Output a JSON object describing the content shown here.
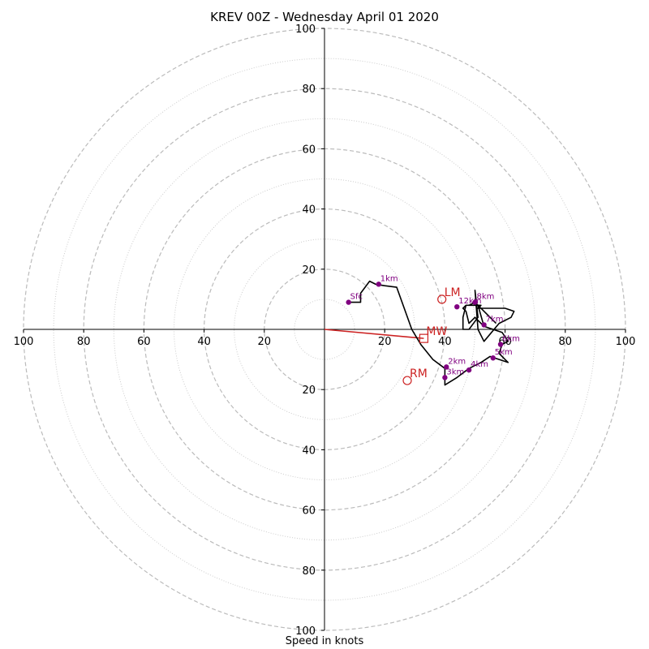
{
  "chart_data": {
    "type": "scatter",
    "subtype": "hodograph",
    "title": "KREV 00Z - Wednesday April 01 2020",
    "xlabel": "Speed in knots",
    "xlim": [
      -100,
      100
    ],
    "ylim": [
      -100,
      100
    ],
    "x_ticks": [
      {
        "value": -100,
        "label": "100"
      },
      {
        "value": -80,
        "label": "80"
      },
      {
        "value": -60,
        "label": "60"
      },
      {
        "value": -40,
        "label": "40"
      },
      {
        "value": -20,
        "label": "20"
      },
      {
        "value": 20,
        "label": "20"
      },
      {
        "value": 40,
        "label": "40"
      },
      {
        "value": 60,
        "label": "60"
      },
      {
        "value": 80,
        "label": "80"
      },
      {
        "value": 100,
        "label": "100"
      }
    ],
    "y_ticks": [
      {
        "value": 100,
        "label": "100"
      },
      {
        "value": 80,
        "label": "80"
      },
      {
        "value": 60,
        "label": "60"
      },
      {
        "value": 40,
        "label": "40"
      },
      {
        "value": 20,
        "label": "20"
      },
      {
        "value": -20,
        "label": "20"
      },
      {
        "value": -40,
        "label": "40"
      },
      {
        "value": -60,
        "label": "60"
      },
      {
        "value": -80,
        "label": "80"
      },
      {
        "value": -100,
        "label": "100"
      }
    ],
    "rings_major": [
      20,
      40,
      60,
      80,
      100
    ],
    "rings_minor": [
      10,
      30,
      50,
      70,
      90
    ],
    "grid": true,
    "colors": {
      "trace": "#000000",
      "height_marker": "#800080",
      "storm_motion": "#cc2222",
      "ring": "#bbbbbb",
      "minor_ring": "#cccccc",
      "axis": "#000000"
    },
    "trace": [
      [
        8,
        9
      ],
      [
        12,
        9
      ],
      [
        12,
        12
      ],
      [
        15,
        16
      ],
      [
        17,
        15
      ],
      [
        20,
        14.5
      ],
      [
        24,
        14
      ],
      [
        29,
        0
      ],
      [
        32,
        -5
      ],
      [
        36,
        -10
      ],
      [
        40,
        -13
      ],
      [
        40,
        -16
      ],
      [
        40,
        -18.5
      ],
      [
        44,
        -16
      ],
      [
        48,
        -13
      ],
      [
        52,
        -11
      ],
      [
        55,
        -9
      ],
      [
        61,
        -11
      ],
      [
        58,
        -8
      ],
      [
        59,
        -5
      ],
      [
        61,
        -4
      ],
      [
        59,
        -1
      ],
      [
        53,
        1
      ],
      [
        51,
        8
      ],
      [
        53,
        1
      ],
      [
        50,
        4
      ],
      [
        48,
        2
      ],
      [
        47,
        6
      ],
      [
        46,
        7
      ],
      [
        47,
        8
      ],
      [
        52,
        8
      ],
      [
        51,
        7
      ],
      [
        60,
        7
      ],
      [
        63,
        6
      ],
      [
        62,
        4
      ],
      [
        58,
        2
      ],
      [
        53,
        -4
      ],
      [
        51,
        0
      ],
      [
        50,
        13
      ],
      [
        51,
        4
      ],
      [
        48,
        0
      ],
      [
        46,
        0
      ],
      [
        46,
        4
      ],
      [
        47,
        8
      ],
      [
        48,
        8
      ],
      [
        50,
        9
      ],
      [
        51,
        8
      ],
      [
        57,
        2
      ]
    ],
    "height_markers": [
      {
        "label": "Sfc",
        "x": 8,
        "y": 9
      },
      {
        "label": "1km",
        "x": 18,
        "y": 15
      },
      {
        "label": "2km",
        "x": 40.5,
        "y": -12.5
      },
      {
        "label": "3km",
        "x": 40,
        "y": -16
      },
      {
        "label": "4km",
        "x": 48,
        "y": -13.5
      },
      {
        "label": "5km",
        "x": 56,
        "y": -9.5
      },
      {
        "label": "6km",
        "x": 58.5,
        "y": -5
      },
      {
        "label": "7km",
        "x": 53,
        "y": 1.5
      },
      {
        "label": "8km",
        "x": 50,
        "y": 9
      },
      {
        "label": "12km",
        "x": 44,
        "y": 7.5
      }
    ],
    "storm_motion": [
      {
        "label": "LM",
        "x": 39,
        "y": 10,
        "marker": "circle"
      },
      {
        "label": "RM",
        "x": 27.5,
        "y": -17,
        "marker": "circle"
      },
      {
        "label": "MW",
        "x": 33,
        "y": -3,
        "marker": "square"
      }
    ],
    "storm_vector": {
      "from": [
        0,
        0
      ],
      "to": [
        33,
        -3
      ]
    }
  }
}
